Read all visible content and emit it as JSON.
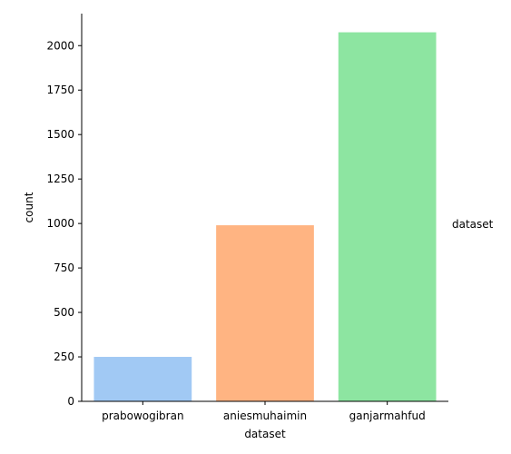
{
  "chart_data": {
    "type": "bar",
    "categories": [
      "prabowogibran",
      "aniesmuhaimin",
      "ganjarmahfud"
    ],
    "values": [
      250,
      990,
      2075
    ],
    "colors": [
      "#a1c9f4",
      "#ffb482",
      "#8de5a1"
    ],
    "xlabel": "dataset",
    "ylabel": "count",
    "ylim": [
      0,
      2180
    ],
    "yticks": [
      0,
      250,
      500,
      750,
      1000,
      1250,
      1500,
      1750,
      2000
    ],
    "legend_title": "dataset",
    "legend_position": "right",
    "grid": false
  }
}
